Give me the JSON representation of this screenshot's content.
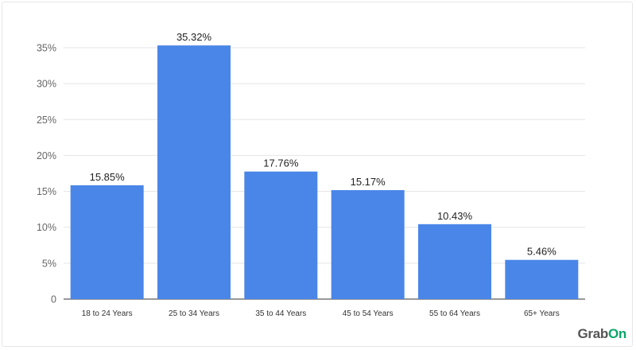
{
  "chart_data": {
    "type": "bar",
    "title": "",
    "xlabel": "",
    "ylabel": "",
    "categories": [
      "18 to 24 Years",
      "25 to 34 Years",
      "35 to 44 Years",
      "45 to 54 Years",
      "55 to 64 Years",
      "65+ Years"
    ],
    "values": [
      15.85,
      35.32,
      17.76,
      15.17,
      10.43,
      5.46
    ],
    "data_labels": [
      "15.85%",
      "35.32%",
      "17.76%",
      "15.17%",
      "10.43%",
      "5.46%"
    ],
    "ylim": [
      0,
      35
    ],
    "yticks": [
      0,
      5,
      10,
      15,
      20,
      25,
      30,
      35
    ],
    "ytick_labels": [
      "0",
      "5%",
      "10%",
      "15%",
      "20%",
      "25%",
      "30%",
      "35%"
    ],
    "grid": true,
    "bar_color": "#4a86e8",
    "grid_color": "#e5e5e5"
  },
  "logo": {
    "part1": "Grab",
    "part2": "On"
  },
  "colors": {
    "logo_text": "#555555",
    "logo_accent": "#0aa66a"
  }
}
